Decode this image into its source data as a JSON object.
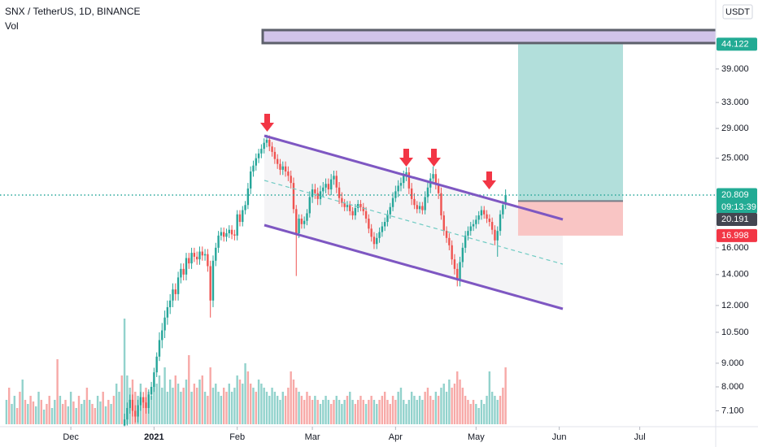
{
  "chart_data": {
    "type": "candlestick",
    "title": "SNX / TetherUS, 1D, BINANCE",
    "subtitle": "Vol",
    "currency": "USDT",
    "log_scale": true,
    "grid": false,
    "up_color": "#26a69a",
    "down_color": "#ef5350",
    "xlim": [
      -26.4,
      240.3
    ],
    "xticks": [
      {
        "value": 0,
        "label": "Dec"
      },
      {
        "value": 31,
        "label": "2021"
      },
      {
        "value": 62,
        "label": "Feb"
      },
      {
        "value": 90,
        "label": "Mar"
      },
      {
        "value": 121,
        "label": "Apr"
      },
      {
        "value": 151,
        "label": "May"
      },
      {
        "value": 182,
        "label": "Jun"
      },
      {
        "value": 212,
        "label": "Jul"
      }
    ],
    "ylim": [
      6.56,
      55.0
    ],
    "yticks": [
      {
        "value": 39,
        "label": "39.000"
      },
      {
        "value": 33,
        "label": "33.000"
      },
      {
        "value": 29,
        "label": "29.000"
      },
      {
        "value": 25,
        "label": "25.000"
      },
      {
        "value": 16,
        "label": "16.000"
      },
      {
        "value": 14,
        "label": "14.000"
      },
      {
        "value": 12,
        "label": "12.000"
      },
      {
        "value": 10.5,
        "label": "10.500"
      },
      {
        "value": 9,
        "label": "9.000"
      },
      {
        "value": 8,
        "label": "8.000"
      },
      {
        "value": 7.1,
        "label": "7.100"
      }
    ],
    "x": [
      -24,
      -23,
      -22,
      -21,
      -20,
      -19,
      -18,
      -17,
      -16,
      -15,
      -14,
      -13,
      -12,
      -11,
      -10,
      -9,
      -8,
      -7,
      -6,
      -5,
      -4,
      -3,
      -2,
      -1,
      0,
      1,
      2,
      3,
      4,
      5,
      6,
      7,
      8,
      9,
      10,
      11,
      12,
      13,
      14,
      15,
      16,
      17,
      18,
      19,
      20,
      21,
      22,
      23,
      24,
      25,
      26,
      27,
      28,
      29,
      30,
      31,
      32,
      33,
      34,
      35,
      36,
      37,
      38,
      39,
      40,
      41,
      42,
      43,
      44,
      45,
      46,
      47,
      48,
      49,
      50,
      51,
      52,
      53,
      54,
      55,
      56,
      57,
      58,
      59,
      60,
      61,
      62,
      63,
      64,
      65,
      66,
      67,
      68,
      69,
      70,
      71,
      72,
      73,
      74,
      75,
      76,
      77,
      78,
      79,
      80,
      81,
      82,
      83,
      84,
      85,
      86,
      87,
      88,
      89,
      90,
      91,
      92,
      93,
      94,
      95,
      96,
      97,
      98,
      99,
      100,
      101,
      102,
      103,
      104,
      105,
      106,
      107,
      108,
      109,
      110,
      111,
      112,
      113,
      114,
      115,
      116,
      117,
      118,
      119,
      120,
      121,
      122,
      123,
      124,
      125,
      126,
      127,
      128,
      129,
      130,
      131,
      132,
      133,
      134,
      135,
      136,
      137,
      138,
      139,
      140,
      141,
      142,
      143,
      144,
      145,
      146,
      147,
      148,
      149,
      150,
      151,
      152,
      153,
      154,
      155,
      156,
      157,
      158,
      159,
      160,
      161,
      162
    ],
    "ohlc": [
      null,
      null,
      null,
      null,
      null,
      null,
      null,
      null,
      null,
      null,
      null,
      null,
      null,
      null,
      null,
      null,
      null,
      null,
      null,
      null,
      null,
      null,
      null,
      null,
      null,
      null,
      null,
      null,
      null,
      null,
      null,
      null,
      null,
      null,
      null,
      null,
      null,
      null,
      null,
      null,
      null,
      null,
      null,
      null,
      [
        6.6,
        7.0,
        6.4,
        6.8
      ],
      [
        6.8,
        7.4,
        6.6,
        7.2
      ],
      [
        7.2,
        7.7,
        7.0,
        7.5
      ],
      [
        7.5,
        7.7,
        6.9,
        7.1
      ],
      [
        7.1,
        7.3,
        6.7,
        6.9
      ],
      [
        6.9,
        7.5,
        6.7,
        7.3
      ],
      [
        7.3,
        7.8,
        7.1,
        7.6
      ],
      [
        7.6,
        7.8,
        7.2,
        7.4
      ],
      [
        7.4,
        7.6,
        7.0,
        7.2
      ],
      [
        7.2,
        7.9,
        7.0,
        7.7
      ],
      [
        7.7,
        8.2,
        7.5,
        8.0
      ],
      [
        8.0,
        8.8,
        7.8,
        8.6
      ],
      [
        8.6,
        9.5,
        8.4,
        9.3
      ],
      [
        9.3,
        10.5,
        9.1,
        10.1
      ],
      [
        10.1,
        11.0,
        9.7,
        10.6
      ],
      [
        10.6,
        11.7,
        10.2,
        11.3
      ],
      [
        11.3,
        12.3,
        10.9,
        11.9
      ],
      [
        11.9,
        12.7,
        11.5,
        12.3
      ],
      [
        12.3,
        13.4,
        11.9,
        13.0
      ],
      [
        13.0,
        13.4,
        12.3,
        12.7
      ],
      [
        12.7,
        14.2,
        12.3,
        13.8
      ],
      [
        13.8,
        14.8,
        13.4,
        14.4
      ],
      [
        14.4,
        14.8,
        13.6,
        14.0
      ],
      [
        14.0,
        15.6,
        13.6,
        15.2
      ],
      [
        15.2,
        15.6,
        14.4,
        14.8
      ],
      [
        14.8,
        16.0,
        14.4,
        15.6
      ],
      [
        15.6,
        16.0,
        14.9,
        15.3
      ],
      [
        15.3,
        15.7,
        14.7,
        15.1
      ],
      [
        15.1,
        16.1,
        14.7,
        15.7
      ],
      [
        15.7,
        16.1,
        15.0,
        15.4
      ],
      [
        15.4,
        15.9,
        15.0,
        15.5
      ],
      [
        15.5,
        15.9,
        14.2,
        14.6
      ],
      [
        14.6,
        15.0,
        11.3,
        12.3
      ],
      [
        12.3,
        15.4,
        11.9,
        15.0
      ],
      [
        15.0,
        16.4,
        14.6,
        16.0
      ],
      [
        16.0,
        17.4,
        15.6,
        17.0
      ],
      [
        17.0,
        17.7,
        16.6,
        17.3
      ],
      [
        17.3,
        17.7,
        16.5,
        16.9
      ],
      [
        16.9,
        17.6,
        16.5,
        17.2
      ],
      [
        17.2,
        17.9,
        16.8,
        17.5
      ],
      [
        17.5,
        17.9,
        16.7,
        17.1
      ],
      [
        17.1,
        17.5,
        16.6,
        17.0
      ],
      [
        17.0,
        19.3,
        16.6,
        18.9
      ],
      [
        18.9,
        19.3,
        17.8,
        18.2
      ],
      [
        18.2,
        19.7,
        17.8,
        19.3
      ],
      [
        19.3,
        20.2,
        18.9,
        19.8
      ],
      [
        19.8,
        22.1,
        19.4,
        21.5
      ],
      [
        21.5,
        24.0,
        20.9,
        23.4
      ],
      [
        23.4,
        24.7,
        22.8,
        24.1
      ],
      [
        24.1,
        25.6,
        23.5,
        25.0
      ],
      [
        25.0,
        26.2,
        24.4,
        25.6
      ],
      [
        25.6,
        26.8,
        25.0,
        26.2
      ],
      [
        26.2,
        27.6,
        25.6,
        27.0
      ],
      [
        27.0,
        28.1,
        26.4,
        27.4
      ],
      [
        27.4,
        28.0,
        25.9,
        26.5
      ],
      [
        26.5,
        27.1,
        25.2,
        25.8
      ],
      [
        25.8,
        26.4,
        24.3,
        24.9
      ],
      [
        24.9,
        25.5,
        23.7,
        24.3
      ],
      [
        24.3,
        24.9,
        23.0,
        23.6
      ],
      [
        23.6,
        24.6,
        23.0,
        24.0
      ],
      [
        24.0,
        24.6,
        22.8,
        23.4
      ],
      [
        23.4,
        24.0,
        22.3,
        22.9
      ],
      [
        22.9,
        23.5,
        21.5,
        22.1
      ],
      [
        22.1,
        22.7,
        19.0,
        19.4
      ],
      [
        19.4,
        19.8,
        13.9,
        17.2
      ],
      [
        17.2,
        18.9,
        16.8,
        18.5
      ],
      [
        18.5,
        18.9,
        17.6,
        18.0
      ],
      [
        18.0,
        18.7,
        17.6,
        18.3
      ],
      [
        18.3,
        19.4,
        17.9,
        19.0
      ],
      [
        19.0,
        21.2,
        18.6,
        20.6
      ],
      [
        20.6,
        22.0,
        20.0,
        21.4
      ],
      [
        21.4,
        22.0,
        20.4,
        21.0
      ],
      [
        21.0,
        21.6,
        19.8,
        20.4
      ],
      [
        20.4,
        21.8,
        19.8,
        21.2
      ],
      [
        21.2,
        22.2,
        20.6,
        21.6
      ],
      [
        21.6,
        22.6,
        21.0,
        22.0
      ],
      [
        22.0,
        22.6,
        20.8,
        21.4
      ],
      [
        21.4,
        23.1,
        20.8,
        22.5
      ],
      [
        22.5,
        23.5,
        21.9,
        22.9
      ],
      [
        22.9,
        23.5,
        21.0,
        21.6
      ],
      [
        21.6,
        22.2,
        19.9,
        20.5
      ],
      [
        20.5,
        21.1,
        19.6,
        20.0
      ],
      [
        20.0,
        20.4,
        19.2,
        19.6
      ],
      [
        19.6,
        20.2,
        19.2,
        19.8
      ],
      [
        19.8,
        20.2,
        18.8,
        19.2
      ],
      [
        19.2,
        19.6,
        18.4,
        18.8
      ],
      [
        18.8,
        19.9,
        18.4,
        19.5
      ],
      [
        19.5,
        20.3,
        19.1,
        19.9
      ],
      [
        19.9,
        20.3,
        19.2,
        19.6
      ],
      [
        19.6,
        20.0,
        18.8,
        19.2
      ],
      [
        19.2,
        19.6,
        18.1,
        18.5
      ],
      [
        18.5,
        18.9,
        17.2,
        17.6
      ],
      [
        17.6,
        18.0,
        16.5,
        16.9
      ],
      [
        16.9,
        17.3,
        15.9,
        16.3
      ],
      [
        16.3,
        17.2,
        15.9,
        16.8
      ],
      [
        16.8,
        17.7,
        16.4,
        17.3
      ],
      [
        17.3,
        18.2,
        16.9,
        17.8
      ],
      [
        17.8,
        18.6,
        17.4,
        18.2
      ],
      [
        18.2,
        19.3,
        17.8,
        18.9
      ],
      [
        18.9,
        20.0,
        18.5,
        19.6
      ],
      [
        19.6,
        21.1,
        19.2,
        20.5
      ],
      [
        20.5,
        21.8,
        20.1,
        21.2
      ],
      [
        21.2,
        22.4,
        20.6,
        21.8
      ],
      [
        21.8,
        22.7,
        21.2,
        22.1
      ],
      [
        22.1,
        23.5,
        21.5,
        22.9
      ],
      [
        22.9,
        23.9,
        22.3,
        23.3
      ],
      [
        23.3,
        23.9,
        20.9,
        21.5
      ],
      [
        21.5,
        22.1,
        19.8,
        20.4
      ],
      [
        20.4,
        21.0,
        19.4,
        19.8
      ],
      [
        19.8,
        20.2,
        19.0,
        19.4
      ],
      [
        19.4,
        20.1,
        19.0,
        19.7
      ],
      [
        19.7,
        20.1,
        18.9,
        19.3
      ],
      [
        19.3,
        21.2,
        18.9,
        20.6
      ],
      [
        20.6,
        22.2,
        20.0,
        21.6
      ],
      [
        21.6,
        23.2,
        21.0,
        22.6
      ],
      [
        22.6,
        24.0,
        22.0,
        23.1
      ],
      [
        23.1,
        23.7,
        21.4,
        22.0
      ],
      [
        22.0,
        22.6,
        20.4,
        21.0
      ],
      [
        21.0,
        21.6,
        18.4,
        18.8
      ],
      [
        18.8,
        19.2,
        17.0,
        17.4
      ],
      [
        17.4,
        17.8,
        16.4,
        16.8
      ],
      [
        16.8,
        17.2,
        15.8,
        16.2
      ],
      [
        16.2,
        16.6,
        14.7,
        15.1
      ],
      [
        15.1,
        15.5,
        14.0,
        14.4
      ],
      [
        14.4,
        14.8,
        13.2,
        13.6
      ],
      [
        13.6,
        15.3,
        13.2,
        14.9
      ],
      [
        14.9,
        16.4,
        14.5,
        16.0
      ],
      [
        16.0,
        17.4,
        15.6,
        17.0
      ],
      [
        17.0,
        17.8,
        16.6,
        17.4
      ],
      [
        17.4,
        18.2,
        17.0,
        17.8
      ],
      [
        17.8,
        18.4,
        17.4,
        18.0
      ],
      [
        18.0,
        18.8,
        17.6,
        18.4
      ],
      [
        18.4,
        19.2,
        18.0,
        18.8
      ],
      [
        18.8,
        19.7,
        18.4,
        19.3
      ],
      [
        19.3,
        19.7,
        18.5,
        18.9
      ],
      [
        18.9,
        19.3,
        18.1,
        18.5
      ],
      [
        18.5,
        18.9,
        17.8,
        18.2
      ],
      [
        18.2,
        18.6,
        17.1,
        17.5
      ],
      [
        17.5,
        17.9,
        16.2,
        16.6
      ],
      [
        16.6,
        17.8,
        15.3,
        17.4
      ],
      [
        17.4,
        19.3,
        17.0,
        18.9
      ],
      [
        18.9,
        20.2,
        18.5,
        19.8
      ],
      [
        19.8,
        21.4,
        19.4,
        20.809
      ]
    ],
    "volume": {
      "values": [
        30,
        45,
        25,
        35,
        20,
        40,
        55,
        30,
        25,
        35,
        28,
        22,
        40,
        30,
        18,
        25,
        35,
        20,
        30,
        80,
        35,
        25,
        30,
        22,
        40,
        28,
        20,
        35,
        25,
        30,
        45,
        30,
        25,
        20,
        35,
        28,
        40,
        22,
        30,
        25,
        35,
        50,
        40,
        60,
        130,
        60,
        45,
        55,
        40,
        35,
        50,
        30,
        45,
        40,
        35,
        55,
        50,
        60,
        45,
        70,
        40,
        55,
        45,
        60,
        50,
        40,
        45,
        55,
        85,
        40,
        50,
        45,
        55,
        60,
        40,
        35,
        70,
        45,
        50,
        40,
        35,
        45,
        40,
        50,
        40,
        45,
        60,
        55,
        50,
        75,
        65,
        50,
        45,
        40,
        55,
        50,
        45,
        40,
        35,
        45,
        40,
        35,
        30,
        40,
        35,
        45,
        65,
        55,
        45,
        40,
        35,
        30,
        40,
        35,
        30,
        35,
        30,
        25,
        30,
        35,
        30,
        25,
        30,
        35,
        30,
        25,
        30,
        35,
        40,
        30,
        25,
        30,
        35,
        30,
        25,
        30,
        35,
        30,
        25,
        30,
        35,
        40,
        30,
        25,
        35,
        30,
        40,
        45,
        30,
        25,
        30,
        40,
        35,
        30,
        35,
        30,
        40,
        45,
        35,
        30,
        40,
        35,
        45,
        50,
        40,
        55,
        45,
        50,
        65,
        55,
        45,
        35,
        30,
        25,
        30,
        25,
        20,
        30,
        25,
        35,
        65,
        40,
        35,
        30,
        35,
        45,
        70
      ],
      "up": [
        true,
        false,
        true,
        true,
        false,
        false,
        true,
        false,
        true,
        false,
        false,
        true,
        true,
        false,
        true,
        false,
        false,
        true,
        true,
        false,
        true,
        false,
        false,
        true,
        true,
        false,
        true,
        false,
        true,
        true,
        false,
        true,
        false,
        false,
        true,
        true,
        false,
        true,
        false,
        true,
        false,
        true,
        true,
        false,
        true,
        true,
        true,
        false,
        false,
        true,
        true,
        false,
        false,
        true,
        true,
        true,
        true,
        true,
        true,
        true,
        true,
        true,
        true,
        false,
        true,
        true,
        false,
        true,
        false,
        true,
        false,
        false,
        true,
        false,
        true,
        false,
        false,
        true,
        true,
        true,
        true,
        false,
        false,
        true,
        true,
        true,
        true,
        false,
        true,
        true,
        false,
        false,
        true,
        false,
        true,
        true,
        true,
        true,
        true,
        true,
        true,
        true,
        true,
        true,
        false,
        false,
        false,
        false,
        false,
        true,
        false,
        false,
        false,
        false,
        false,
        true,
        false,
        true,
        true,
        true,
        true,
        false,
        false,
        true,
        true,
        true,
        true,
        false,
        true,
        true,
        false,
        false,
        false,
        false,
        true,
        false,
        false,
        true,
        true,
        false,
        false,
        false,
        false,
        false,
        false,
        false,
        true,
        true,
        true,
        true,
        true,
        true,
        true,
        true,
        true,
        true,
        false,
        false,
        false,
        false,
        true,
        false,
        true,
        true,
        true,
        true,
        false,
        false,
        false,
        false,
        false,
        false,
        false,
        false,
        false,
        true,
        true,
        true,
        true,
        true,
        true,
        true,
        true,
        true,
        false,
        false,
        false,
        false,
        false,
        true,
        true,
        true,
        true
      ]
    },
    "last_price": {
      "value": 20.809,
      "label": "20.809",
      "countdown": "09:13:39"
    },
    "position": {
      "target": {
        "value": 44.122,
        "label": "44.122"
      },
      "entry": {
        "value": 20.191,
        "label": "20.191"
      },
      "stop": {
        "value": 16.998,
        "label": "16.998"
      }
    }
  }
}
